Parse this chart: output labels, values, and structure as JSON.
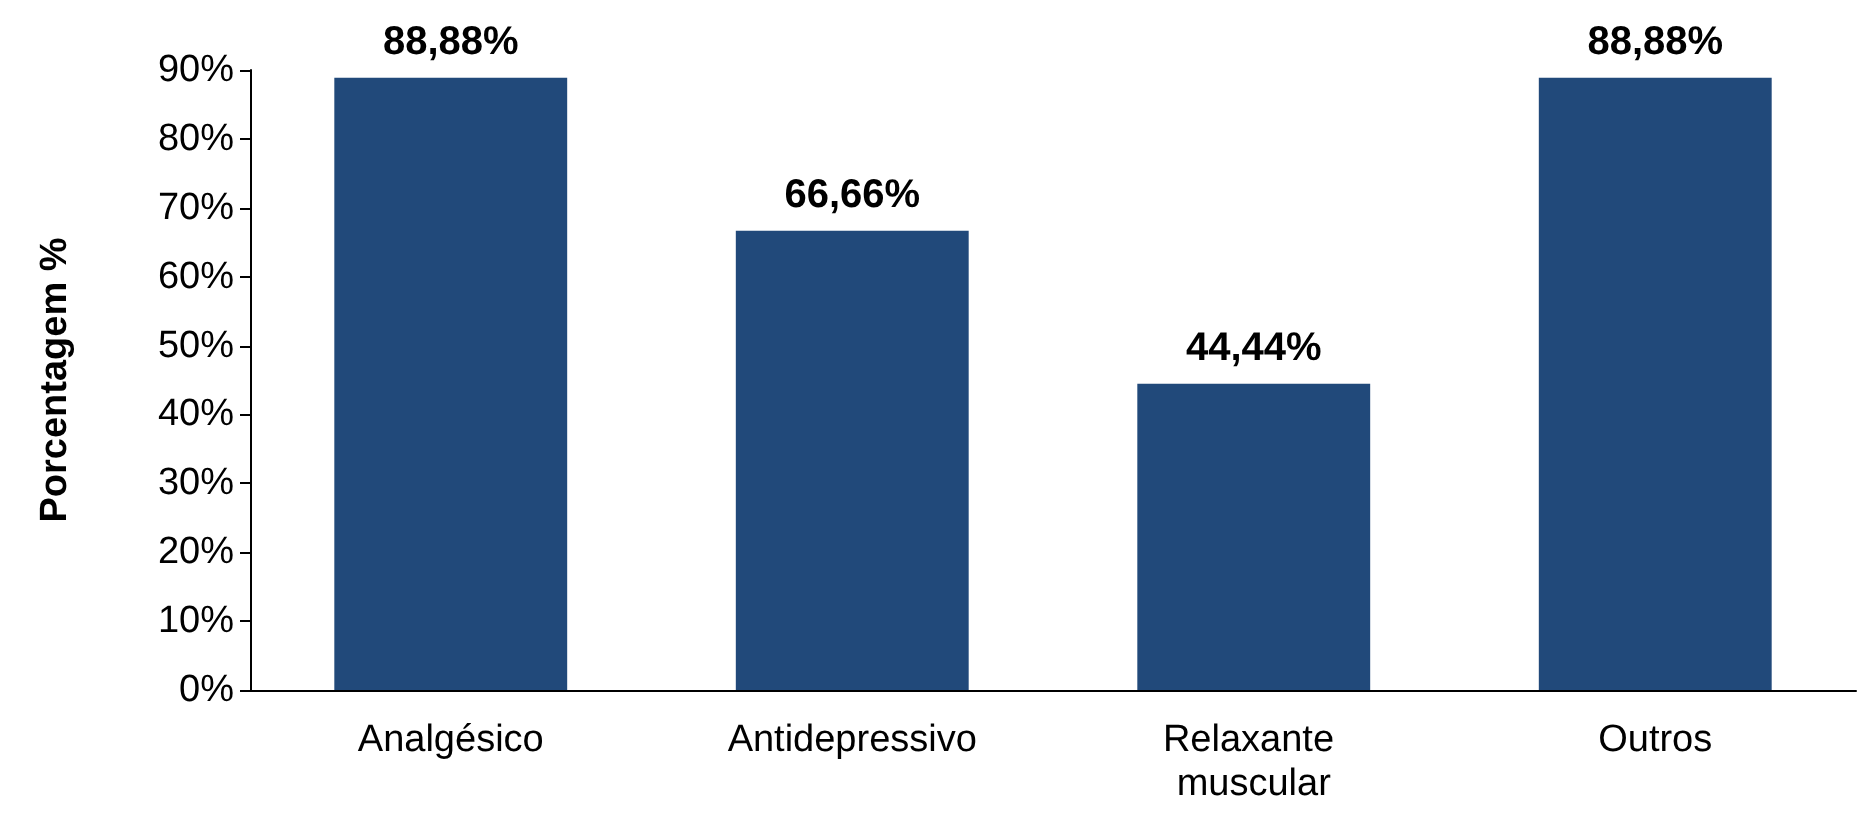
{
  "chart_data": {
    "type": "bar",
    "ylabel": "Porcentagem %",
    "categories": [
      "Analgésico",
      "Antidepressivo",
      "Relaxante muscular",
      "Outros"
    ],
    "values": [
      88.88,
      66.66,
      44.44,
      88.88
    ],
    "value_labels": [
      "88,88%",
      "66,66%",
      "44,44%",
      "88,88%"
    ],
    "color": "#21497a",
    "ylim": [
      0,
      90
    ],
    "yticks": [
      {
        "value": 0,
        "label": "0%"
      },
      {
        "value": 10,
        "label": "10%"
      },
      {
        "value": 20,
        "label": "20%"
      },
      {
        "value": 30,
        "label": "30%"
      },
      {
        "value": 40,
        "label": "40%"
      },
      {
        "value": 50,
        "label": "50%"
      },
      {
        "value": 60,
        "label": "60%"
      },
      {
        "value": 70,
        "label": "70%"
      },
      {
        "value": 80,
        "label": "80%"
      },
      {
        "value": 90,
        "label": "90%"
      }
    ],
    "grid": false
  }
}
